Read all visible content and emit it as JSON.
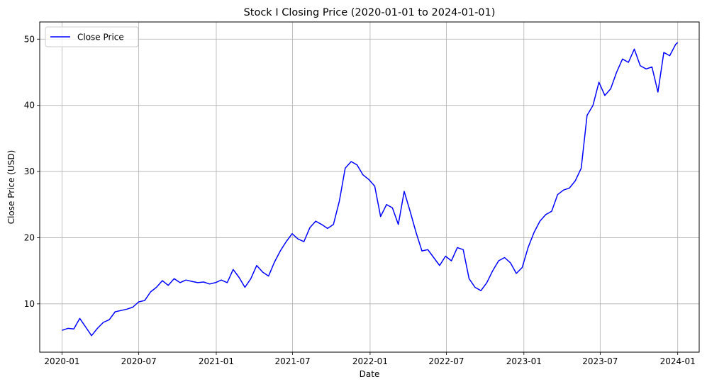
{
  "chart_data": {
    "type": "line",
    "title": "Stock I Closing Price (2020-01-01 to 2024-01-01)",
    "xlabel": "Date",
    "ylabel": "Close Price (USD)",
    "xlim": [
      "2019-11-09",
      "2024-02-21"
    ],
    "ylim": [
      2.7,
      52.6
    ],
    "x_ticks": [
      "2020-01",
      "2020-07",
      "2021-01",
      "2021-07",
      "2022-01",
      "2022-07",
      "2023-01",
      "2023-07",
      "2024-01"
    ],
    "y_ticks": [
      10,
      20,
      30,
      40,
      50
    ],
    "grid": true,
    "legend": {
      "position": "top-left"
    },
    "colors": {
      "line": "#0000ff",
      "grid": "#b0b0b0",
      "axes": "#000000"
    },
    "series": [
      {
        "name": "Close Price",
        "x": [
          "2020-01-01",
          "2020-01-15",
          "2020-01-29",
          "2020-02-12",
          "2020-02-26",
          "2020-03-11",
          "2020-03-25",
          "2020-04-08",
          "2020-04-22",
          "2020-05-06",
          "2020-05-20",
          "2020-06-03",
          "2020-06-17",
          "2020-07-01",
          "2020-07-15",
          "2020-07-29",
          "2020-08-12",
          "2020-08-26",
          "2020-09-09",
          "2020-09-23",
          "2020-10-07",
          "2020-10-21",
          "2020-11-04",
          "2020-11-18",
          "2020-12-02",
          "2020-12-16",
          "2020-12-30",
          "2021-01-13",
          "2021-01-27",
          "2021-02-10",
          "2021-02-24",
          "2021-03-10",
          "2021-03-24",
          "2021-04-07",
          "2021-04-21",
          "2021-05-05",
          "2021-05-19",
          "2021-06-02",
          "2021-06-16",
          "2021-06-30",
          "2021-07-14",
          "2021-07-28",
          "2021-08-11",
          "2021-08-25",
          "2021-09-08",
          "2021-09-22",
          "2021-10-06",
          "2021-10-20",
          "2021-11-03",
          "2021-11-17",
          "2021-12-01",
          "2021-12-15",
          "2021-12-29",
          "2022-01-12",
          "2022-01-26",
          "2022-02-09",
          "2022-02-23",
          "2022-03-09",
          "2022-03-23",
          "2022-04-06",
          "2022-04-20",
          "2022-05-04",
          "2022-05-18",
          "2022-06-01",
          "2022-06-15",
          "2022-06-29",
          "2022-07-13",
          "2022-07-27",
          "2022-08-10",
          "2022-08-24",
          "2022-09-07",
          "2022-09-21",
          "2022-10-05",
          "2022-10-19",
          "2022-11-02",
          "2022-11-16",
          "2022-11-30",
          "2022-12-14",
          "2022-12-28",
          "2023-01-11",
          "2023-01-25",
          "2023-02-08",
          "2023-02-22",
          "2023-03-08",
          "2023-03-22",
          "2023-04-05",
          "2023-04-19",
          "2023-05-03",
          "2023-05-17",
          "2023-05-31",
          "2023-06-14",
          "2023-06-28",
          "2023-07-12",
          "2023-07-26",
          "2023-08-09",
          "2023-08-23",
          "2023-09-06",
          "2023-09-20",
          "2023-10-04",
          "2023-10-18",
          "2023-11-01",
          "2023-11-15",
          "2023-11-29",
          "2023-12-13",
          "2023-12-27",
          "2024-01-01"
        ],
        "values": [
          6.0,
          6.3,
          6.2,
          7.8,
          6.5,
          5.2,
          6.3,
          7.2,
          7.6,
          8.8,
          9.0,
          9.2,
          9.5,
          10.3,
          10.5,
          11.8,
          12.5,
          13.5,
          12.8,
          13.8,
          13.2,
          13.6,
          13.4,
          13.2,
          13.3,
          13.0,
          13.2,
          13.6,
          13.2,
          15.2,
          14.0,
          12.5,
          13.8,
          15.8,
          14.8,
          14.2,
          16.3,
          18.0,
          19.4,
          20.6,
          19.8,
          19.4,
          21.5,
          22.5,
          22.0,
          21.4,
          22.0,
          25.5,
          30.5,
          31.5,
          31.0,
          29.5,
          28.8,
          27.8,
          23.2,
          25.0,
          24.5,
          22.0,
          27.0,
          24.0,
          20.8,
          18.0,
          18.2,
          17.0,
          15.8,
          17.2,
          16.5,
          18.5,
          18.2,
          13.8,
          12.5,
          12.0,
          13.2,
          15.0,
          16.5,
          17.0,
          16.2,
          14.6,
          15.5,
          18.5,
          20.8,
          22.5,
          23.5,
          24.0,
          26.5,
          27.2,
          27.5,
          28.6,
          30.5,
          38.5,
          40.0,
          43.5,
          41.5,
          42.5,
          45.0,
          47.0,
          46.5,
          48.5,
          46.0,
          45.5,
          45.8,
          42.0,
          48.0,
          47.5,
          49.2,
          49.5
        ]
      }
    ]
  }
}
